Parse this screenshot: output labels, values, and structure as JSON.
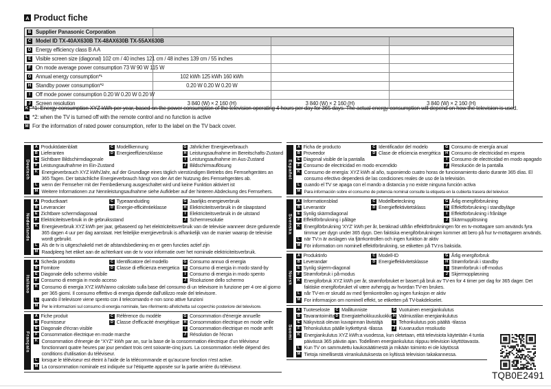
{
  "header": {
    "badge": "A",
    "title": "Product fiche"
  },
  "colors": {
    "badge_bg": "#141414",
    "row_supplier_bg": "#e6e6e6",
    "row_model_bg": "#d2d2d2",
    "table_border": "#2e2e2e",
    "text": "#1a1a1a"
  },
  "table": {
    "b": {
      "badge": "B",
      "label": "Supplier Panasonic Corporation"
    },
    "c": {
      "badge": "C",
      "label": "Model ID TX-40AX630B TX-48AX630B TX-55AX630B"
    },
    "d": {
      "badge": "D",
      "label": "Energy efficiency class B A A"
    },
    "e": {
      "badge": "E",
      "label": "Visible screen size (diagonal) 102 cm / 40 inches 121 cm / 48 inches 139 cm / 55 inches"
    },
    "f": {
      "badge": "F",
      "label": "On mode average power consumption 73 W 90 W 115 W"
    },
    "g": {
      "badge": "G",
      "label": "Annual energy consumption*¹",
      "value": "102 kWh 125 kWh 160 kWh"
    },
    "h": {
      "badge": "H",
      "label": "Standby power consumption*²",
      "value": "0.20 W 0.20 W 0.20 W"
    },
    "i": {
      "badge": "I",
      "label": "Off mode power consumption 0.20 W 0.20 W 0.20 W"
    },
    "j": {
      "badge": "J",
      "label": "Screen resolution",
      "values": [
        "3 840 (W) × 2 160 (H)",
        "3 840 (W) × 2 160 (H)",
        "3 840 (W) × 2 160 (H)"
      ]
    }
  },
  "footnotes": [
    {
      "badge": "K",
      "text": "*1: Energy consumption XYZ kWh per year, based on the power consumption of the television operating 4 hours per day for 365 days. The actual energy consumption will depend on how the television is used."
    },
    {
      "badge": "L",
      "text": "*2: when the TV is turned off with the remote control and no function is active"
    },
    {
      "badge": "M",
      "text": "For the information of rated power consumption, refer to the label on the TV back cover."
    }
  ],
  "languages": [
    {
      "name": "Deutsch",
      "entries": {
        "A": "Produktdatenblatt",
        "B": "Lieferanten",
        "C": "Modellkennung",
        "D": "Energieeffizienzklasse",
        "E": "Sichtbare Bildschirmdiagonale",
        "F": "Leistungsaufnahme im Ein-Zustand",
        "G": "Jährlicher Energieverbrauch",
        "H": "Leistungsaufnahme im Bereitschafts-Zustand",
        "I": "Leistungsaufnahme im Aus-Zustand",
        "J": "Bildschirmauflösung"
      },
      "notes": {
        "K": "Energieverbrauch XYZ kWh/Jahr, auf der Grundlage eines täglich vierstündigen Betriebs des Fernsehgerätes an 365 Tagen. Der tatsächliche Energieverbrauch hängt von der Art der Nutzung des Fernsehgerätes ab.",
        "L": "wenn der Fernseher mit der Fernbedienung ausgeschaltet wird und keine Funktion aktiviert ist",
        "M": "Weitere Informationen zur Nennleistungsaufnahme siehe Aufkleber auf der hinteren Abdeckung des Fernsehers."
      }
    },
    {
      "name": "Nederlands",
      "entries": {
        "A": "Productkaart",
        "B": "Leverancier",
        "C": "Typeaanduiding",
        "D": "Energie-efficiëntieklasse",
        "E": "Zichtbare schermdiagonaal",
        "F": "Elektriciteitsverbruik in de gebruiksstand",
        "G": "Jaarlijks energieverbruik",
        "H": "Elektriciteitsverbruik in de slaapstand",
        "I": "Elektriciteitsverbruik in de uitstand",
        "J": "Schermresolutie"
      },
      "notes": {
        "K": "Energieverbruik XYZ kWh per jaar, gebaseerd op het elektriciteitsverbruik van de televisie wanneer deze gedurende 365 dagen 4 uur per dag aanstaat. Het feitelijke energieverbruik is afhankelijk van de manier waarop de televisie wordt gebruikt.",
        "L": "Als de tv is uitgeschakeld met de afstandsbediening en er geen functies actief zijn",
        "M": "Raadpleeg het etiket aan de achterkant van de tv voor informatie over het nominale elektriciteitsverbruik."
      }
    },
    {
      "name": "Italiano",
      "entries": {
        "A": "Scheda prodotto",
        "B": "Fornitore",
        "C": "Identificatore del modello",
        "D": "Classe di efficienza energetica",
        "E": "Diagonale dello schermo visibile",
        "F": "Consumo di energia in modo acceso",
        "G": "Consumo annuo di energia",
        "H": "Consumo di energia in modo stand-by",
        "I": "Consumo di energia in modo spento",
        "J": "Risoluzione dello schermo"
      },
      "notes": {
        "K": "Consumo di energia XYZ kWh/anno calcolato sulla base del consumo di un televisore in funzione per 4 ore al giorno per 365 giorni. Il consumo effettivo di energia dipende dall'utilizzo reale del televisore.",
        "L": "quando il televisore viene spento con il telecomando e non sono attive funzioni",
        "M": "Per le informazioni sul consumo di energia nominale, fare riferimento all'etichetta sul coperchio posteriore del televisore."
      }
    },
    {
      "name": "Français",
      "entries": {
        "A": "Fiche produit",
        "B": "Fournisseur",
        "C": "Référence du modèle",
        "D": "Classe d'efficacité énergétique",
        "E": "Diagonale d'écran visible",
        "F": "Consommation électrique en mode marche",
        "G": "Consommation d'énergie annuelle",
        "H": "Consommation électrique en mode veille",
        "I": "Consommation électrique en mode arrêt",
        "J": "Résolution de l'écran"
      },
      "notes": {
        "K": "Consommation d'énergie de “XYZ” kWh par an, sur la base de la consommation électrique d'un téléviseur fonctionnant quatre heures par jour pendant trois cent soixante-cinq jours. La consommation réelle dépend des conditions d'utilisation du téléviseur.",
        "L": "lorsque le téléviseur est éteint à l'aide de la télécommande et qu'aucune fonction n'est active.",
        "M": "La consommation nominale est indiquée sur l'étiquette apposée sur la partie arrière du téléviseur."
      }
    },
    {
      "name": "Español",
      "entries": {
        "A": "Ficha de producto",
        "B": "Proveedor",
        "C": "Identificador del modelo",
        "D": "Clase de eficiencia energética",
        "E": "Diagonal visible de la pantalla",
        "F": "Consumo de electricidad en modo encendido",
        "G": "Consumo de energía anual",
        "H": "Consumo de electricidad en espera",
        "I": "Consumo de electricidad en modo apagado",
        "J": "Resolución de la pantalla"
      },
      "notes": {
        "K": "Consumo de energía: XYZ kWh al año, suponiendo cuatro horas de funcionamiento diario durante 365 días. El consumo efectivo dependerá de las condiciones reales de uso de la televisión.",
        "L": "cuando el TV se apaga con el mando a distancia y no existe ninguna función activa",
        "M": "Para información sobre el consumo de potencia nominal consulte la etiqueta en la cubierta trasera del televisor."
      }
    },
    {
      "name": "Svenska",
      "entries": {
        "A": "Informationsblad",
        "B": "Leverantör",
        "C": "Modellbeteckning",
        "D": "Energieffektivitetsklass",
        "E": "Synlig skärmdiagonal",
        "F": "Effektförbrukning i påläge",
        "G": "Årlig energiförbrukning",
        "H": "Effektförbrukning i standbyläge",
        "I": "Effektförbrukning i frånläge",
        "J": "Skärmupplösning"
      },
      "notes": {
        "K": "Energiförbrukning 'XYZ' kWh per år, beräknad utifrån effektförbrukningen för en tv-mottagare som används fyra timmar per dygn under 365 dygn. Den faktiska energiförbrukningen kommer att bero på hur tv-mottagaren används.",
        "L": "när TV:n är avslagen via fjärrkontrollen och ingen funktion är aktiv",
        "M": "För information om nominell effektförbrukning, se etiketten på TV:ns baksida."
      }
    },
    {
      "name": "Norsk",
      "entries": {
        "A": "Produktinfo",
        "B": "Leverandør",
        "C": "Modell-ID",
        "D": "Energieffektivitetsklasse",
        "E": "Synlig skjerm-diagonal",
        "F": "Strømforbruk i på-modus",
        "G": "Årlig energiforbruk",
        "H": "Strømforbruk i standby",
        "I": "Strømforbruk i off-modus",
        "J": "Skjermoppløsning"
      },
      "notes": {
        "K": "Energiforbruk XYZ kWh per år, strømforbruket er basert på bruk av TV-en for 4 timer per dag for 365 dager. Det faktiske energiforbruket vil være avhengig av hvordan TV-en brukes.",
        "L": "når TV-en er skrudd av med fjernkontrollen og ingen funksjon er aktiv",
        "M": "For informasjon om nominell effekt, se etiketten på TV-bakdekselet."
      }
    },
    {
      "name": "Suomi",
      "entries": {
        "A": "Tuoteseloste",
        "B": "Tavarantoimittaja",
        "C": "Mallitunniste",
        "D": "Energiatehokkuusluokka",
        "E": "Näkyvissä olevan kuvapinnan lävistäjä",
        "F": "Tehonkulutus päälle kytkettynä -tilassa",
        "G": "Vuotuinen energiankulutus",
        "H": "Valmiustilan energiankulutus",
        "I": "Tehonkulutus pois päältä -tilassa",
        "J": "Kuvaruudun resoluutio"
      },
      "notes": {
        "K": "Energiankulutus XYZ kWh:a vuodessa, kun oletetaan, että televisiota käytetään 4 tuntia päivässä 365 päivän ajan. Todellinen energiankulutus riippuu television käyttötavasta.",
        "L": "Kun TV on sammutettu kaukosäätimestä ja mikään toiminto ei ole käytössä",
        "M": "Tietoja nimellisestä virrankulutuksesta on kyltissä television takakannessa."
      }
    }
  ],
  "qr": {
    "code": "TQB0E2491"
  }
}
